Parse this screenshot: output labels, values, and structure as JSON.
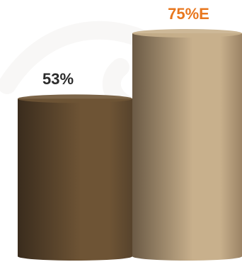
{
  "chart_data": {
    "type": "bar",
    "style": "3d-cylinder",
    "title": "",
    "xlabel": "",
    "ylabel": "",
    "ylim": [
      0,
      100
    ],
    "categories": [
      "",
      ""
    ],
    "values": [
      53,
      75
    ],
    "data_labels": [
      "53%",
      "75%E"
    ],
    "label_colors": [
      "#2b2b2b",
      "#e8771e"
    ],
    "bar_colors": [
      {
        "dark": "#3a2c1d",
        "mid": "#6e5435",
        "light": "#57432c"
      },
      {
        "dark": "#6b5a45",
        "mid": "#c8b08c",
        "light": "#9c8466"
      }
    ],
    "grid": false,
    "legend": "none"
  }
}
